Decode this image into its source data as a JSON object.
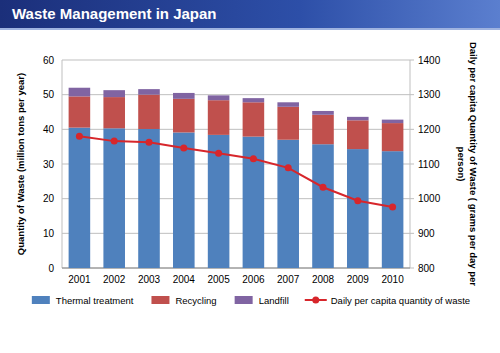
{
  "chart_data": {
    "type": "bar",
    "title": "Waste Management in Japan",
    "categories": [
      "2001",
      "2002",
      "2003",
      "2004",
      "2005",
      "2006",
      "2007",
      "2008",
      "2009",
      "2010"
    ],
    "stacked": true,
    "grid": true,
    "legend": "bottom",
    "y_label": "Quantity of Waste (million tons per year)",
    "y2_label": "Daily per capita Quantity of Waste ( grams per day per person)",
    "ylim": [
      0,
      60
    ],
    "yticks": [
      0,
      10,
      20,
      30,
      40,
      50,
      60
    ],
    "y2lim": [
      800,
      1400
    ],
    "y2ticks": [
      800,
      900,
      1000,
      1100,
      1200,
      1300,
      1400
    ],
    "series": [
      {
        "name": "Thermal treatment",
        "type": "bar",
        "color": "#4f81bd",
        "values": [
          40.5,
          40.3,
          40.1,
          39.1,
          38.4,
          37.9,
          37.0,
          35.7,
          34.3,
          33.7
        ]
      },
      {
        "name": "Recycling",
        "type": "bar",
        "color": "#c0504d",
        "values": [
          9.0,
          9.0,
          9.9,
          9.7,
          10.0,
          9.9,
          9.5,
          8.5,
          8.3,
          8.1
        ]
      },
      {
        "name": "Landfill",
        "type": "bar",
        "color": "#8064a2",
        "values": [
          2.5,
          2.0,
          1.6,
          1.7,
          1.4,
          1.2,
          1.3,
          1.1,
          1.0,
          1.0
        ]
      },
      {
        "name": "Daily per capita quantity of waste",
        "type": "line",
        "axis": "y2",
        "color": "#d7262b",
        "marker": "circle",
        "line_style": "solid",
        "values": [
          1180,
          1166,
          1163,
          1146,
          1131,
          1115,
          1089,
          1033,
          994,
          976
        ]
      }
    ]
  }
}
